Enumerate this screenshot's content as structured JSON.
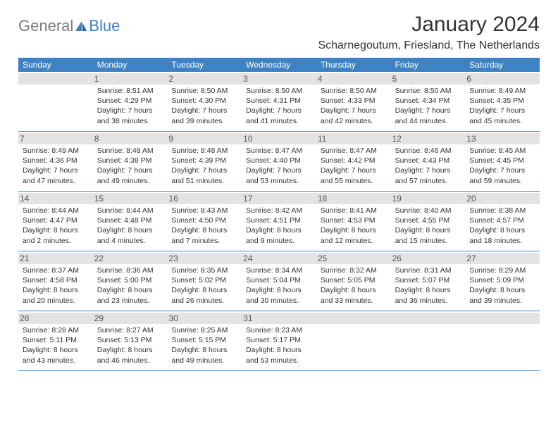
{
  "logo": {
    "part1": "General",
    "part2": "Blue"
  },
  "title": "January 2024",
  "location": "Scharnegoutum, Friesland, The Netherlands",
  "colors": {
    "header_bg": "#3d82c4",
    "header_text": "#ffffff",
    "date_bg": "#e3e3e3",
    "text": "#333333",
    "logo_gray": "#7d7d7d",
    "logo_blue": "#3d82c4",
    "border": "#3d82c4"
  },
  "dayNames": [
    "Sunday",
    "Monday",
    "Tuesday",
    "Wednesday",
    "Thursday",
    "Friday",
    "Saturday"
  ],
  "weeks": [
    [
      null,
      {
        "d": "1",
        "r": "8:51 AM",
        "s": "4:29 PM",
        "dl": "7 hours and 38 minutes."
      },
      {
        "d": "2",
        "r": "8:50 AM",
        "s": "4:30 PM",
        "dl": "7 hours and 39 minutes."
      },
      {
        "d": "3",
        "r": "8:50 AM",
        "s": "4:31 PM",
        "dl": "7 hours and 41 minutes."
      },
      {
        "d": "4",
        "r": "8:50 AM",
        "s": "4:33 PM",
        "dl": "7 hours and 42 minutes."
      },
      {
        "d": "5",
        "r": "8:50 AM",
        "s": "4:34 PM",
        "dl": "7 hours and 44 minutes."
      },
      {
        "d": "6",
        "r": "8:49 AM",
        "s": "4:35 PM",
        "dl": "7 hours and 45 minutes."
      }
    ],
    [
      {
        "d": "7",
        "r": "8:49 AM",
        "s": "4:36 PM",
        "dl": "7 hours and 47 minutes."
      },
      {
        "d": "8",
        "r": "8:48 AM",
        "s": "4:38 PM",
        "dl": "7 hours and 49 minutes."
      },
      {
        "d": "9",
        "r": "8:48 AM",
        "s": "4:39 PM",
        "dl": "7 hours and 51 minutes."
      },
      {
        "d": "10",
        "r": "8:47 AM",
        "s": "4:40 PM",
        "dl": "7 hours and 53 minutes."
      },
      {
        "d": "11",
        "r": "8:47 AM",
        "s": "4:42 PM",
        "dl": "7 hours and 55 minutes."
      },
      {
        "d": "12",
        "r": "8:46 AM",
        "s": "4:43 PM",
        "dl": "7 hours and 57 minutes."
      },
      {
        "d": "13",
        "r": "8:45 AM",
        "s": "4:45 PM",
        "dl": "7 hours and 59 minutes."
      }
    ],
    [
      {
        "d": "14",
        "r": "8:44 AM",
        "s": "4:47 PM",
        "dl": "8 hours and 2 minutes."
      },
      {
        "d": "15",
        "r": "8:44 AM",
        "s": "4:48 PM",
        "dl": "8 hours and 4 minutes."
      },
      {
        "d": "16",
        "r": "8:43 AM",
        "s": "4:50 PM",
        "dl": "8 hours and 7 minutes."
      },
      {
        "d": "17",
        "r": "8:42 AM",
        "s": "4:51 PM",
        "dl": "8 hours and 9 minutes."
      },
      {
        "d": "18",
        "r": "8:41 AM",
        "s": "4:53 PM",
        "dl": "8 hours and 12 minutes."
      },
      {
        "d": "19",
        "r": "8:40 AM",
        "s": "4:55 PM",
        "dl": "8 hours and 15 minutes."
      },
      {
        "d": "20",
        "r": "8:38 AM",
        "s": "4:57 PM",
        "dl": "8 hours and 18 minutes."
      }
    ],
    [
      {
        "d": "21",
        "r": "8:37 AM",
        "s": "4:58 PM",
        "dl": "8 hours and 20 minutes."
      },
      {
        "d": "22",
        "r": "8:36 AM",
        "s": "5:00 PM",
        "dl": "8 hours and 23 minutes."
      },
      {
        "d": "23",
        "r": "8:35 AM",
        "s": "5:02 PM",
        "dl": "8 hours and 26 minutes."
      },
      {
        "d": "24",
        "r": "8:34 AM",
        "s": "5:04 PM",
        "dl": "8 hours and 30 minutes."
      },
      {
        "d": "25",
        "r": "8:32 AM",
        "s": "5:05 PM",
        "dl": "8 hours and 33 minutes."
      },
      {
        "d": "26",
        "r": "8:31 AM",
        "s": "5:07 PM",
        "dl": "8 hours and 36 minutes."
      },
      {
        "d": "27",
        "r": "8:29 AM",
        "s": "5:09 PM",
        "dl": "8 hours and 39 minutes."
      }
    ],
    [
      {
        "d": "28",
        "r": "8:28 AM",
        "s": "5:11 PM",
        "dl": "8 hours and 43 minutes."
      },
      {
        "d": "29",
        "r": "8:27 AM",
        "s": "5:13 PM",
        "dl": "8 hours and 46 minutes."
      },
      {
        "d": "30",
        "r": "8:25 AM",
        "s": "5:15 PM",
        "dl": "8 hours and 49 minutes."
      },
      {
        "d": "31",
        "r": "8:23 AM",
        "s": "5:17 PM",
        "dl": "8 hours and 53 minutes."
      },
      null,
      null,
      null
    ]
  ],
  "labels": {
    "sunrise": "Sunrise: ",
    "sunset": "Sunset: ",
    "daylight": "Daylight: "
  }
}
